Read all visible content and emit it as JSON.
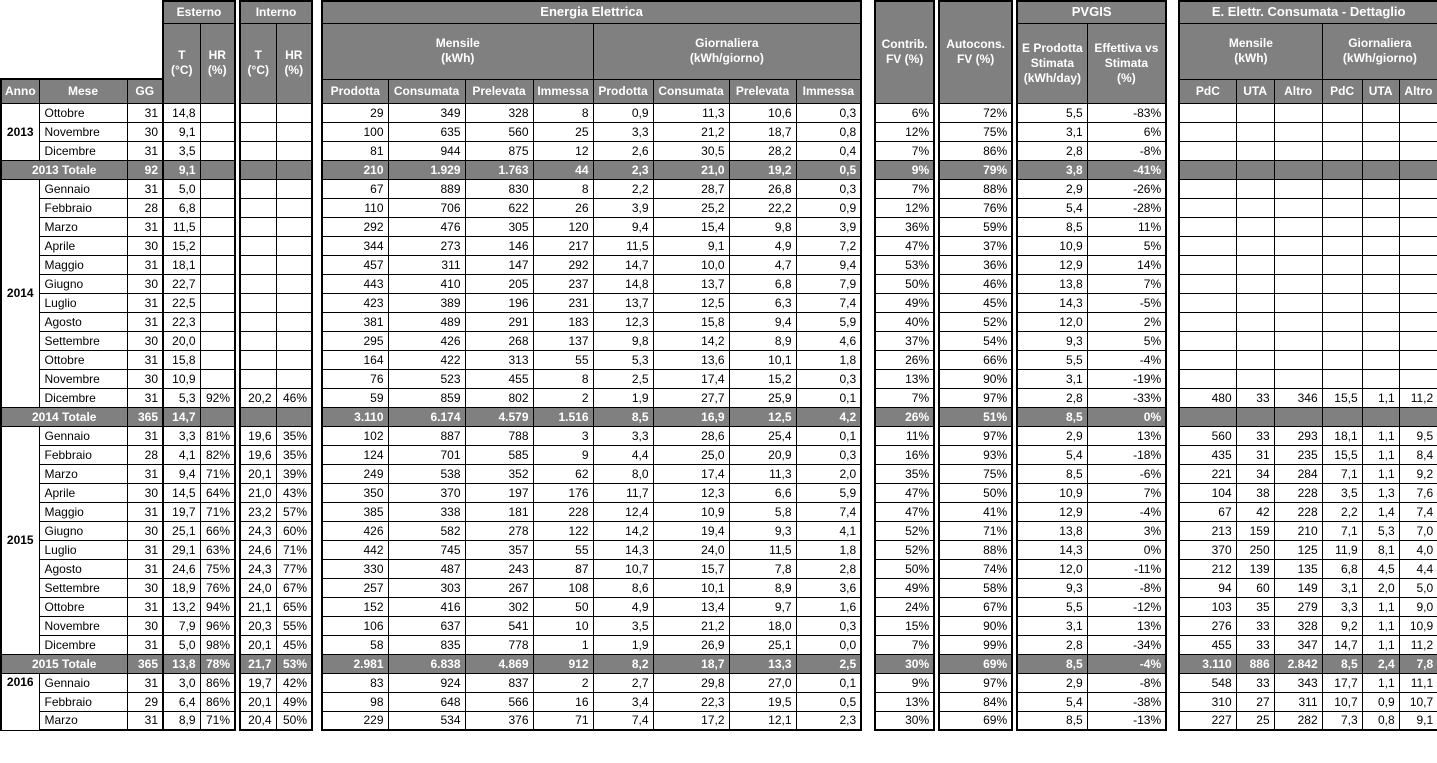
{
  "colors": {
    "header_bg": "#808080",
    "header_text": "#ffffff",
    "border": "#000000",
    "cell_bg": "#ffffff"
  },
  "header": {
    "anno": "Anno",
    "mese": "Mese",
    "gg": "GG",
    "esterno": "Esterno",
    "interno": "Interno",
    "t": "T\n(°C)",
    "hr": "HR\n(%)",
    "energia": "Energia Elettrica",
    "mensile_kwh": "Mensile\n(kWh)",
    "giornaliera_kwh": "Giornaliera\n(kWh/giorno)",
    "prodotta": "Prodotta",
    "consumata": "Consumata",
    "prelevata": "Prelevata",
    "immessa": "Immessa",
    "contrib": "Contrib.\nFV (%)",
    "autocons": "Autocons.\nFV (%)",
    "pvgis": "PVGIS",
    "stimata": "E Prodotta\nStimata\n(kWh/day)",
    "effettiva": "Effettiva vs\nStimata\n(%)",
    "dettaglio": "E. Elettr. Consumata - Dettaglio",
    "pdc": "PdC",
    "uta": "UTA",
    "altro": "Altro"
  },
  "table": {
    "groups": [
      {
        "anno": "2013",
        "months": [
          {
            "mese": "Ottobre",
            "v": [
              "31",
              "14,8",
              "",
              "",
              "",
              "29",
              "349",
              "328",
              "8",
              "0,9",
              "11,3",
              "10,6",
              "0,3",
              "6%",
              "72%",
              "5,5",
              "-83%",
              "",
              "",
              "",
              "",
              "",
              ""
            ]
          },
          {
            "mese": "Novembre",
            "v": [
              "30",
              "9,1",
              "",
              "",
              "",
              "100",
              "635",
              "560",
              "25",
              "3,3",
              "21,2",
              "18,7",
              "0,8",
              "12%",
              "75%",
              "3,1",
              "6%",
              "",
              "",
              "",
              "",
              "",
              ""
            ]
          },
          {
            "mese": "Dicembre",
            "v": [
              "31",
              "3,5",
              "",
              "",
              "",
              "81",
              "944",
              "875",
              "12",
              "2,6",
              "30,5",
              "28,2",
              "0,4",
              "7%",
              "86%",
              "2,8",
              "-8%",
              "",
              "",
              "",
              "",
              "",
              ""
            ]
          }
        ],
        "total": {
          "label": "2013 Totale",
          "v": [
            "92",
            "9,1",
            "",
            "",
            "",
            "210",
            "1.929",
            "1.763",
            "44",
            "2,3",
            "21,0",
            "19,2",
            "0,5",
            "9%",
            "79%",
            "3,8",
            "-41%",
            "",
            "",
            "",
            "",
            "",
            ""
          ]
        }
      },
      {
        "anno": "2014",
        "months": [
          {
            "mese": "Gennaio",
            "v": [
              "31",
              "5,0",
              "",
              "",
              "",
              "67",
              "889",
              "830",
              "8",
              "2,2",
              "28,7",
              "26,8",
              "0,3",
              "7%",
              "88%",
              "2,9",
              "-26%",
              "",
              "",
              "",
              "",
              "",
              ""
            ]
          },
          {
            "mese": "Febbraio",
            "v": [
              "28",
              "6,8",
              "",
              "",
              "",
              "110",
              "706",
              "622",
              "26",
              "3,9",
              "25,2",
              "22,2",
              "0,9",
              "12%",
              "76%",
              "5,4",
              "-28%",
              "",
              "",
              "",
              "",
              "",
              ""
            ]
          },
          {
            "mese": "Marzo",
            "v": [
              "31",
              "11,5",
              "",
              "",
              "",
              "292",
              "476",
              "305",
              "120",
              "9,4",
              "15,4",
              "9,8",
              "3,9",
              "36%",
              "59%",
              "8,5",
              "11%",
              "",
              "",
              "",
              "",
              "",
              ""
            ]
          },
          {
            "mese": "Aprile",
            "v": [
              "30",
              "15,2",
              "",
              "",
              "",
              "344",
              "273",
              "146",
              "217",
              "11,5",
              "9,1",
              "4,9",
              "7,2",
              "47%",
              "37%",
              "10,9",
              "5%",
              "",
              "",
              "",
              "",
              "",
              ""
            ]
          },
          {
            "mese": "Maggio",
            "v": [
              "31",
              "18,1",
              "",
              "",
              "",
              "457",
              "311",
              "147",
              "292",
              "14,7",
              "10,0",
              "4,7",
              "9,4",
              "53%",
              "36%",
              "12,9",
              "14%",
              "",
              "",
              "",
              "",
              "",
              ""
            ]
          },
          {
            "mese": "Giugno",
            "v": [
              "30",
              "22,7",
              "",
              "",
              "",
              "443",
              "410",
              "205",
              "237",
              "14,8",
              "13,7",
              "6,8",
              "7,9",
              "50%",
              "46%",
              "13,8",
              "7%",
              "",
              "",
              "",
              "",
              "",
              ""
            ]
          },
          {
            "mese": "Luglio",
            "v": [
              "31",
              "22,5",
              "",
              "",
              "",
              "423",
              "389",
              "196",
              "231",
              "13,7",
              "12,5",
              "6,3",
              "7,4",
              "49%",
              "45%",
              "14,3",
              "-5%",
              "",
              "",
              "",
              "",
              "",
              ""
            ]
          },
          {
            "mese": "Agosto",
            "v": [
              "31",
              "22,3",
              "",
              "",
              "",
              "381",
              "489",
              "291",
              "183",
              "12,3",
              "15,8",
              "9,4",
              "5,9",
              "40%",
              "52%",
              "12,0",
              "2%",
              "",
              "",
              "",
              "",
              "",
              ""
            ]
          },
          {
            "mese": "Settembre",
            "v": [
              "30",
              "20,0",
              "",
              "",
              "",
              "295",
              "426",
              "268",
              "137",
              "9,8",
              "14,2",
              "8,9",
              "4,6",
              "37%",
              "54%",
              "9,3",
              "5%",
              "",
              "",
              "",
              "",
              "",
              ""
            ]
          },
          {
            "mese": "Ottobre",
            "v": [
              "31",
              "15,8",
              "",
              "",
              "",
              "164",
              "422",
              "313",
              "55",
              "5,3",
              "13,6",
              "10,1",
              "1,8",
              "26%",
              "66%",
              "5,5",
              "-4%",
              "",
              "",
              "",
              "",
              "",
              ""
            ]
          },
          {
            "mese": "Novembre",
            "v": [
              "30",
              "10,9",
              "",
              "",
              "",
              "76",
              "523",
              "455",
              "8",
              "2,5",
              "17,4",
              "15,2",
              "0,3",
              "13%",
              "90%",
              "3,1",
              "-19%",
              "",
              "",
              "",
              "",
              "",
              ""
            ]
          },
          {
            "mese": "Dicembre",
            "v": [
              "31",
              "5,3",
              "92%",
              "20,2",
              "46%",
              "59",
              "859",
              "802",
              "2",
              "1,9",
              "27,7",
              "25,9",
              "0,1",
              "7%",
              "97%",
              "2,8",
              "-33%",
              "480",
              "33",
              "346",
              "15,5",
              "1,1",
              "11,2"
            ]
          }
        ],
        "total": {
          "label": "2014 Totale",
          "v": [
            "365",
            "14,7",
            "",
            "",
            "",
            "3.110",
            "6.174",
            "4.579",
            "1.516",
            "8,5",
            "16,9",
            "12,5",
            "4,2",
            "26%",
            "51%",
            "8,5",
            "0%",
            "",
            "",
            "",
            "",
            "",
            ""
          ]
        }
      },
      {
        "anno": "2015",
        "months": [
          {
            "mese": "Gennaio",
            "v": [
              "31",
              "3,3",
              "81%",
              "19,6",
              "35%",
              "102",
              "887",
              "788",
              "3",
              "3,3",
              "28,6",
              "25,4",
              "0,1",
              "11%",
              "97%",
              "2,9",
              "13%",
              "560",
              "33",
              "293",
              "18,1",
              "1,1",
              "9,5"
            ]
          },
          {
            "mese": "Febbraio",
            "v": [
              "28",
              "4,1",
              "82%",
              "19,6",
              "35%",
              "124",
              "701",
              "585",
              "9",
              "4,4",
              "25,0",
              "20,9",
              "0,3",
              "16%",
              "93%",
              "5,4",
              "-18%",
              "435",
              "31",
              "235",
              "15,5",
              "1,1",
              "8,4"
            ]
          },
          {
            "mese": "Marzo",
            "v": [
              "31",
              "9,4",
              "71%",
              "20,1",
              "39%",
              "249",
              "538",
              "352",
              "62",
              "8,0",
              "17,4",
              "11,3",
              "2,0",
              "35%",
              "75%",
              "8,5",
              "-6%",
              "221",
              "34",
              "284",
              "7,1",
              "1,1",
              "9,2"
            ]
          },
          {
            "mese": "Aprile",
            "v": [
              "30",
              "14,5",
              "64%",
              "21,0",
              "43%",
              "350",
              "370",
              "197",
              "176",
              "11,7",
              "12,3",
              "6,6",
              "5,9",
              "47%",
              "50%",
              "10,9",
              "7%",
              "104",
              "38",
              "228",
              "3,5",
              "1,3",
              "7,6"
            ]
          },
          {
            "mese": "Maggio",
            "v": [
              "31",
              "19,7",
              "71%",
              "23,2",
              "57%",
              "385",
              "338",
              "181",
              "228",
              "12,4",
              "10,9",
              "5,8",
              "7,4",
              "47%",
              "41%",
              "12,9",
              "-4%",
              "67",
              "42",
              "228",
              "2,2",
              "1,4",
              "7,4"
            ]
          },
          {
            "mese": "Giugno",
            "v": [
              "30",
              "25,1",
              "66%",
              "24,3",
              "60%",
              "426",
              "582",
              "278",
              "122",
              "14,2",
              "19,4",
              "9,3",
              "4,1",
              "52%",
              "71%",
              "13,8",
              "3%",
              "213",
              "159",
              "210",
              "7,1",
              "5,3",
              "7,0"
            ]
          },
          {
            "mese": "Luglio",
            "v": [
              "31",
              "29,1",
              "63%",
              "24,6",
              "71%",
              "442",
              "745",
              "357",
              "55",
              "14,3",
              "24,0",
              "11,5",
              "1,8",
              "52%",
              "88%",
              "14,3",
              "0%",
              "370",
              "250",
              "125",
              "11,9",
              "8,1",
              "4,0"
            ]
          },
          {
            "mese": "Agosto",
            "v": [
              "31",
              "24,6",
              "75%",
              "24,3",
              "77%",
              "330",
              "487",
              "243",
              "87",
              "10,7",
              "15,7",
              "7,8",
              "2,8",
              "50%",
              "74%",
              "12,0",
              "-11%",
              "212",
              "139",
              "135",
              "6,8",
              "4,5",
              "4,4"
            ]
          },
          {
            "mese": "Settembre",
            "v": [
              "30",
              "18,9",
              "76%",
              "24,0",
              "67%",
              "257",
              "303",
              "267",
              "108",
              "8,6",
              "10,1",
              "8,9",
              "3,6",
              "49%",
              "58%",
              "9,3",
              "-8%",
              "94",
              "60",
              "149",
              "3,1",
              "2,0",
              "5,0"
            ]
          },
          {
            "mese": "Ottobre",
            "v": [
              "31",
              "13,2",
              "94%",
              "21,1",
              "65%",
              "152",
              "416",
              "302",
              "50",
              "4,9",
              "13,4",
              "9,7",
              "1,6",
              "24%",
              "67%",
              "5,5",
              "-12%",
              "103",
              "35",
              "279",
              "3,3",
              "1,1",
              "9,0"
            ]
          },
          {
            "mese": "Novembre",
            "v": [
              "30",
              "7,9",
              "96%",
              "20,3",
              "55%",
              "106",
              "637",
              "541",
              "10",
              "3,5",
              "21,2",
              "18,0",
              "0,3",
              "15%",
              "90%",
              "3,1",
              "13%",
              "276",
              "33",
              "328",
              "9,2",
              "1,1",
              "10,9"
            ]
          },
          {
            "mese": "Dicembre",
            "v": [
              "31",
              "5,0",
              "98%",
              "20,1",
              "45%",
              "58",
              "835",
              "778",
              "1",
              "1,9",
              "26,9",
              "25,1",
              "0,0",
              "7%",
              "99%",
              "2,8",
              "-34%",
              "455",
              "33",
              "347",
              "14,7",
              "1,1",
              "11,2"
            ]
          }
        ],
        "total": {
          "label": "2015 Totale",
          "v": [
            "365",
            "13,8",
            "78%",
            "21,7",
            "53%",
            "2.981",
            "6.838",
            "4.869",
            "912",
            "8,2",
            "18,7",
            "13,3",
            "2,5",
            "30%",
            "69%",
            "8,5",
            "-4%",
            "3.110",
            "886",
            "2.842",
            "8,5",
            "2,4",
            "7,8"
          ]
        }
      },
      {
        "anno": "2016",
        "months": [
          {
            "mese": "Gennaio",
            "v": [
              "31",
              "3,0",
              "86%",
              "19,7",
              "42%",
              "83",
              "924",
              "837",
              "2",
              "2,7",
              "29,8",
              "27,0",
              "0,1",
              "9%",
              "97%",
              "2,9",
              "-8%",
              "548",
              "33",
              "343",
              "17,7",
              "1,1",
              "11,1"
            ]
          },
          {
            "mese": "Febbraio",
            "v": [
              "29",
              "6,4",
              "86%",
              "20,1",
              "49%",
              "98",
              "648",
              "566",
              "16",
              "3,4",
              "22,3",
              "19,5",
              "0,5",
              "13%",
              "84%",
              "5,4",
              "-38%",
              "310",
              "27",
              "311",
              "10,7",
              "0,9",
              "10,7"
            ]
          },
          {
            "mese": "Marzo",
            "v": [
              "31",
              "8,9",
              "71%",
              "20,4",
              "50%",
              "229",
              "534",
              "376",
              "71",
              "7,4",
              "17,2",
              "12,1",
              "2,3",
              "30%",
              "69%",
              "8,5",
              "-13%",
              "227",
              "25",
              "282",
              "7,3",
              "0,8",
              "9,1"
            ]
          }
        ]
      }
    ]
  }
}
